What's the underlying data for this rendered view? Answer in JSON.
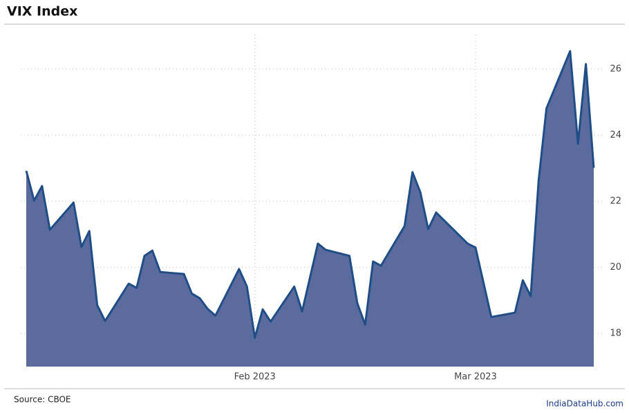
{
  "chart_data": {
    "type": "area",
    "title": "VIX Index",
    "source": "Source: CBOE",
    "credit": "IndiaDataHub.com",
    "x": [
      3,
      4,
      5,
      6,
      9,
      10,
      11,
      12,
      13,
      16,
      17,
      18,
      19,
      20,
      23,
      24,
      25,
      26,
      27,
      30,
      31,
      32,
      33,
      34,
      37,
      38,
      40,
      41,
      44,
      45,
      46,
      47,
      48,
      51,
      52,
      53,
      54,
      55,
      59,
      60,
      62,
      65,
      66,
      67,
      68,
      69,
      72,
      73,
      74,
      75
    ],
    "series": [
      {
        "name": "VIX",
        "color": "#1f4e87",
        "fill": "#5b6b9e",
        "values": [
          22.92,
          22.02,
          22.46,
          21.14,
          21.96,
          20.62,
          21.1,
          18.86,
          18.38,
          19.51,
          19.38,
          20.35,
          20.51,
          19.86,
          19.8,
          19.21,
          19.07,
          18.75,
          18.54,
          19.95,
          19.42,
          17.87,
          18.73,
          18.36,
          19.42,
          18.67,
          20.72,
          20.53,
          20.35,
          18.92,
          18.27,
          20.18,
          20.05,
          21.25,
          22.88,
          22.27,
          21.16,
          21.66,
          20.72,
          20.6,
          18.5,
          18.63,
          19.61,
          19.13,
          22.61,
          24.81,
          26.54,
          23.74,
          26.15,
          23.01
        ]
      }
    ],
    "xlim": [
      3,
      75
    ],
    "xticks": [
      {
        "value": 32,
        "label": "Feb 2023"
      },
      {
        "value": 60,
        "label": "Mar 2023"
      }
    ],
    "ylim": [
      17,
      27.25
    ],
    "yticks": [
      18,
      20,
      22,
      24,
      26
    ],
    "grid": true
  }
}
